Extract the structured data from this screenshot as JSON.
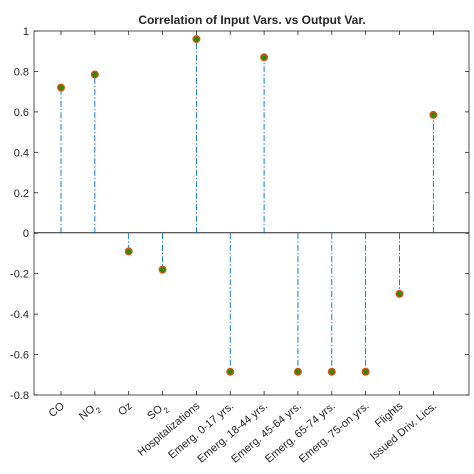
{
  "chart_data": {
    "type": "stem",
    "title": "Correlation of Input Vars. vs Output Var.",
    "categories": [
      "CO",
      "NO2",
      "Oz",
      "SO2",
      "Hospitalizations",
      "Emerg. 0-17 yrs.",
      "Emerg. 18-44 yrs.",
      "Emerg. 45-64 yrs.",
      "Emerg. 65-74 yrs.",
      "Emerg. 75-on yrs.",
      "Flights",
      "Issued Driv. Lics."
    ],
    "values": [
      0.72,
      0.785,
      -0.09,
      -0.18,
      0.96,
      -0.685,
      0.87,
      -0.685,
      -0.685,
      -0.685,
      -0.3,
      0.585
    ],
    "ylim": [
      -0.8,
      1
    ],
    "yticks": [
      "1",
      "0.8",
      "0.6",
      "0.4",
      "0.2",
      "0",
      "-0.2",
      "-0.4",
      "-0.6",
      "-0.8"
    ],
    "grid": false,
    "colors": {
      "stem": "#0072bd",
      "marker_edge": "#d95319",
      "marker_fill": "#2e8b00",
      "axis": "#262626"
    }
  }
}
